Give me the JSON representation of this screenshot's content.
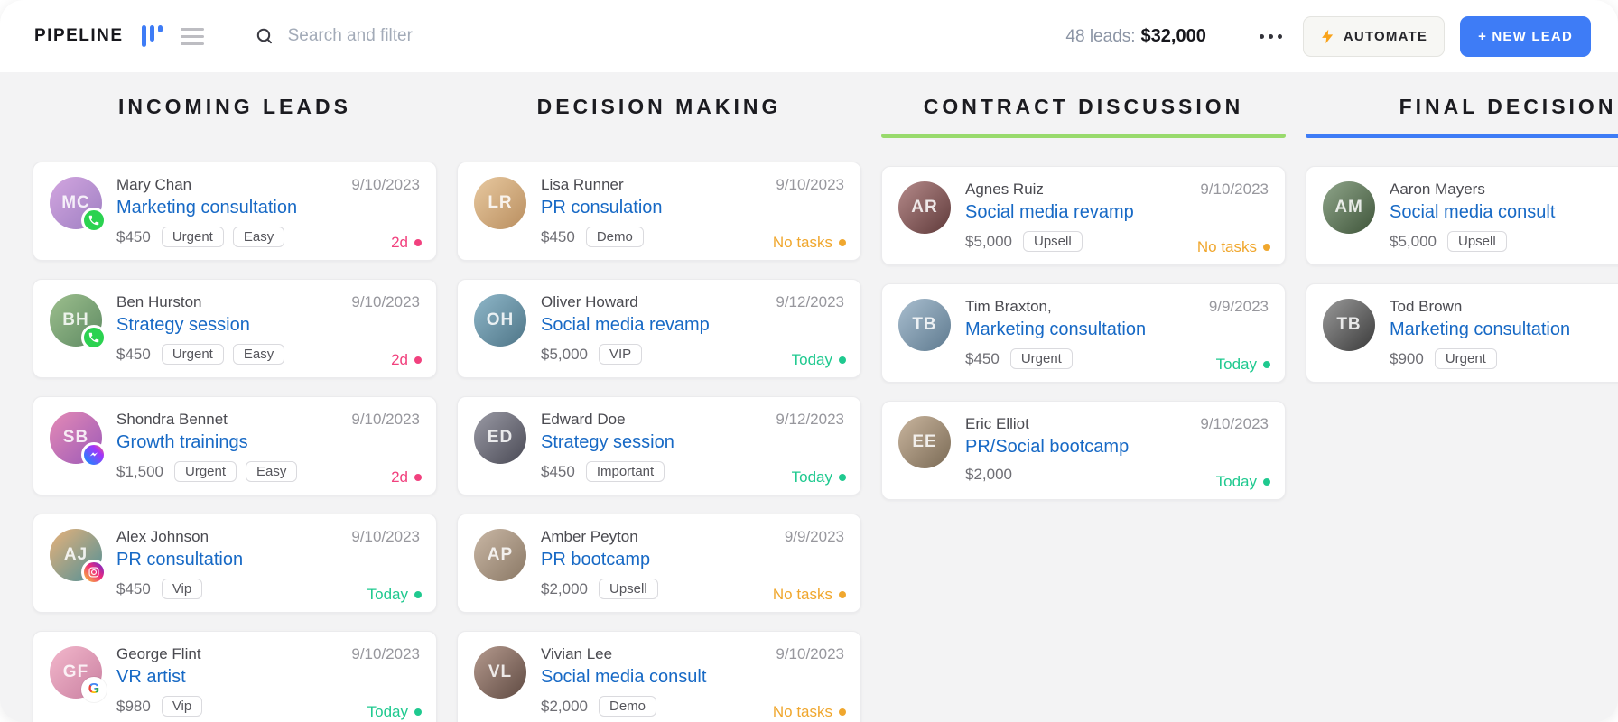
{
  "topbar": {
    "title": "PIPELINE",
    "search_placeholder": "Search and filter",
    "leads_count_label": "48 leads:",
    "leads_total_value": "$32,000",
    "automate_label": "AUTOMATE",
    "new_lead_label": "+ NEW LEAD",
    "icons": [
      "kanban-view-icon",
      "menu-icon",
      "search-icon",
      "more-options-icon",
      "lightning-icon"
    ]
  },
  "theme": {
    "accent_blue": "#3E7CF6",
    "status_colors": {
      "overdue": "#F1417E",
      "today": "#1FC98F",
      "no_tasks": "#F0A72E"
    }
  },
  "board": {
    "columns": [
      {
        "title": "INCOMING LEADS",
        "color": "#FFD43B",
        "leads": [
          {
            "name": "Mary Chan",
            "date": "9/10/2023",
            "title": "Marketing consultation",
            "price": "$450",
            "tags": [
              "Urgent",
              "Easy"
            ],
            "channel": "whatsapp",
            "status": {
              "text": "2d",
              "type": "overdue"
            }
          },
          {
            "name": "Ben Hurston",
            "date": "9/10/2023",
            "title": "Strategy session",
            "price": "$450",
            "tags": [
              "Urgent",
              "Easy"
            ],
            "channel": "whatsapp",
            "status": {
              "text": "2d",
              "type": "overdue"
            }
          },
          {
            "name": "Shondra Bennet",
            "date": "9/10/2023",
            "title": "Growth trainings",
            "price": "$1,500",
            "tags": [
              "Urgent",
              "Easy"
            ],
            "channel": "messenger",
            "status": {
              "text": "2d",
              "type": "overdue"
            }
          },
          {
            "name": "Alex Johnson",
            "date": "9/10/2023",
            "title": "PR consultation",
            "price": "$450",
            "tags": [
              "Vip"
            ],
            "channel": "instagram",
            "status": {
              "text": "Today",
              "type": "today"
            }
          },
          {
            "name": "George Flint",
            "date": "9/10/2023",
            "title": "VR artist",
            "price": "$980",
            "tags": [
              "Vip"
            ],
            "channel": "google",
            "status": {
              "text": "Today",
              "type": "today"
            }
          }
        ]
      },
      {
        "title": "DECISION MAKING",
        "color": "#B44FD8",
        "leads": [
          {
            "name": "Lisa Runner",
            "date": "9/10/2023",
            "title": "PR consulation",
            "price": "$450",
            "tags": [
              "Demo"
            ],
            "channel": null,
            "status": {
              "text": "No tasks",
              "type": "no_tasks"
            }
          },
          {
            "name": "Oliver Howard",
            "date": "9/12/2023",
            "title": "Social media revamp",
            "price": "$5,000",
            "tags": [
              "VIP"
            ],
            "channel": null,
            "status": {
              "text": "Today",
              "type": "today"
            }
          },
          {
            "name": "Edward Doe",
            "date": "9/12/2023",
            "title": "Strategy session",
            "price": "$450",
            "tags": [
              "Important"
            ],
            "channel": null,
            "status": {
              "text": "Today",
              "type": "today"
            }
          },
          {
            "name": "Amber Peyton",
            "date": "9/9/2023",
            "title": "PR bootcamp",
            "price": "$2,000",
            "tags": [
              "Upsell"
            ],
            "channel": null,
            "status": {
              "text": "No tasks",
              "type": "no_tasks"
            }
          },
          {
            "name": "Vivian Lee",
            "date": "9/10/2023",
            "title": "Social media consult",
            "price": "$2,000",
            "tags": [
              "Demo"
            ],
            "channel": null,
            "status": {
              "text": "No tasks",
              "type": "no_tasks"
            }
          }
        ]
      },
      {
        "title": "CONTRACT DISCUSSION",
        "color": "#98DA6C",
        "leads": [
          {
            "name": "Agnes Ruiz",
            "date": "9/10/2023",
            "title": "Social media revamp",
            "price": "$5,000",
            "tags": [
              "Upsell"
            ],
            "channel": null,
            "status": {
              "text": "No tasks",
              "type": "no_tasks"
            }
          },
          {
            "name": "Tim Braxton,",
            "date": "9/9/2023",
            "title": "Marketing consultation",
            "price": "$450",
            "tags": [
              "Urgent"
            ],
            "channel": null,
            "status": {
              "text": "Today",
              "type": "today"
            }
          },
          {
            "name": "Eric Elliot",
            "date": "9/10/2023",
            "title": "PR/Social bootcamp",
            "price": "$2,000",
            "tags": [],
            "channel": null,
            "status": {
              "text": "Today",
              "type": "today"
            }
          }
        ]
      },
      {
        "title": "FINAL DECISION",
        "color": "#3E7CF6",
        "leads": [
          {
            "name": "Aaron Mayers",
            "date": "",
            "title": "Social media consult",
            "price": "$5,000",
            "tags": [
              "Upsell"
            ],
            "channel": null,
            "status": null
          },
          {
            "name": "Tod Brown",
            "date": "",
            "title": "Marketing consultation",
            "price": "$900",
            "tags": [
              "Urgent"
            ],
            "channel": null,
            "status": null
          }
        ]
      }
    ]
  }
}
